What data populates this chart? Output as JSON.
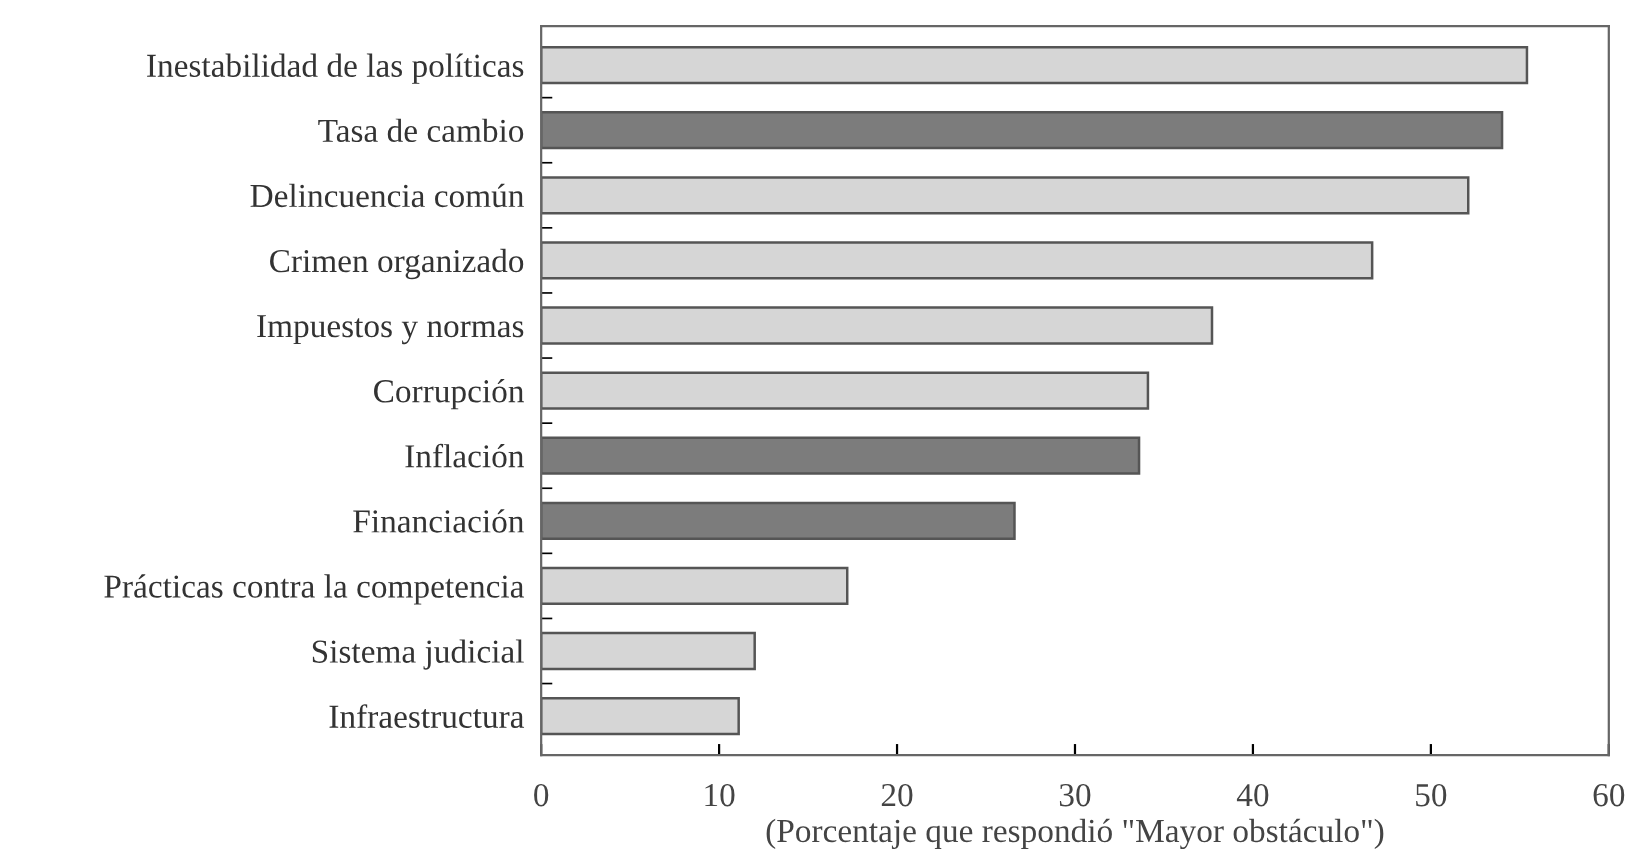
{
  "chart_data": {
    "type": "bar",
    "orientation": "horizontal",
    "xlabel": "(Porcentaje que respondió \"Mayor obstáculo\")",
    "categories": [
      "Inestabilidad de las políticas",
      "Tasa de cambio",
      "Delincuencia común",
      "Crimen organizado",
      "Impuestos y normas",
      "Corrupción",
      "Inflación",
      "Financiación",
      "Prácticas contra la competencia",
      "Sistema judicial",
      "Infraestructura"
    ],
    "values": [
      55.4,
      54.0,
      52.1,
      46.7,
      37.7,
      34.1,
      33.6,
      26.6,
      17.2,
      12.0,
      11.1
    ],
    "colors": [
      "#d6d6d6",
      "#7c7c7c",
      "#d6d6d6",
      "#d6d6d6",
      "#d6d6d6",
      "#d6d6d6",
      "#7c7c7c",
      "#7c7c7c",
      "#d6d6d6",
      "#d6d6d6",
      "#d6d6d6"
    ],
    "xlim": [
      0,
      60
    ],
    "xticks": [
      0,
      10,
      20,
      30,
      40,
      50,
      60
    ],
    "grid": false,
    "legend": false
  }
}
